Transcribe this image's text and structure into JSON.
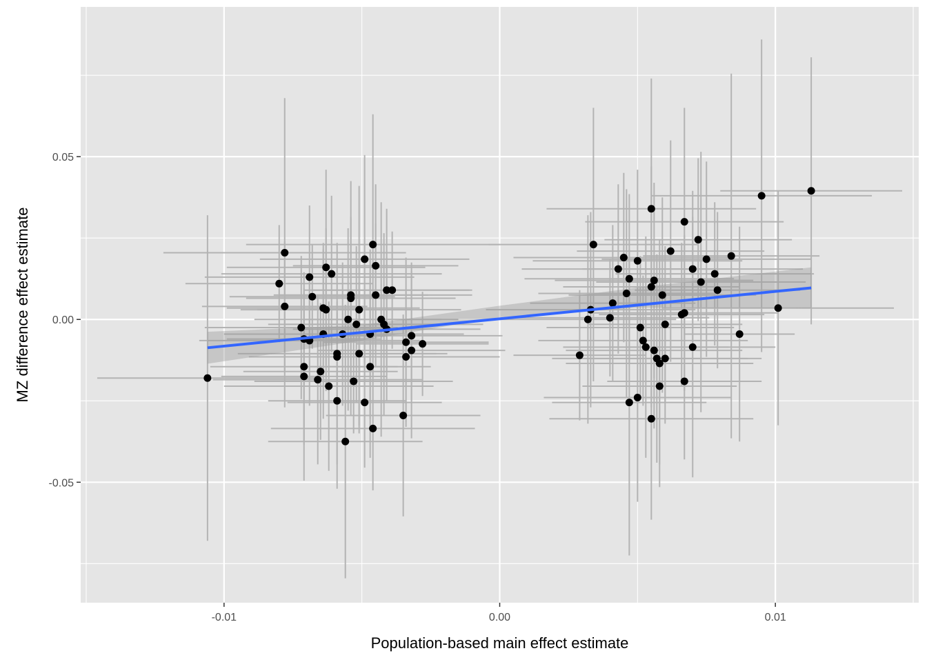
{
  "chart_data": {
    "type": "scatter",
    "title": "",
    "xlabel": "Population-based main effect estimate",
    "ylabel": "MZ difference effect estimate",
    "xlim": [
      -0.0152,
      0.0152
    ],
    "ylim": [
      -0.087,
      0.096
    ],
    "x_ticks": [
      -0.01,
      0.0,
      0.01
    ],
    "x_tick_labels": [
      "-0.01",
      "0.00",
      "0.01"
    ],
    "y_ticks": [
      -0.05,
      0.0,
      0.05
    ],
    "y_tick_labels": [
      "-0.05",
      "0.00",
      "0.05"
    ],
    "grid": true,
    "legend": "none",
    "colors": {
      "panel": "#e5e5e5",
      "grid": "#ffffff",
      "points": "#000000",
      "error_bars": "#b3b3b3",
      "fit_line": "#3366ff",
      "ribbon": "#999999"
    },
    "fit": {
      "x0": -0.0106,
      "y0": -0.0087,
      "x1": 0.0113,
      "y1": 0.0097
    },
    "ribbon": [
      {
        "x": -0.0106,
        "lo": -0.0136,
        "hi": -0.0038
      },
      {
        "x": -0.005,
        "lo": -0.0065,
        "hi": -0.0017
      },
      {
        "x": 0.0,
        "lo": 0.0007,
        "hi": 0.0042
      },
      {
        "x": 0.005,
        "lo": 0.0036,
        "hi": 0.0098
      },
      {
        "x": 0.0113,
        "lo": 0.0035,
        "hi": 0.016
      }
    ],
    "points": [
      {
        "x": -0.0106,
        "y": -0.018,
        "xerr": 0.004,
        "yerr": 0.05
      },
      {
        "x": -0.0078,
        "y": 0.0205,
        "xerr": 0.0044,
        "yerr": 0.0475
      },
      {
        "x": -0.008,
        "y": 0.011,
        "xerr": 0.0034,
        "yerr": 0.018
      },
      {
        "x": -0.0078,
        "y": 0.004,
        "xerr": 0.003,
        "yerr": 0.02
      },
      {
        "x": -0.0069,
        "y": 0.013,
        "xerr": 0.0038,
        "yerr": 0.022
      },
      {
        "x": -0.0063,
        "y": 0.016,
        "xerr": 0.0036,
        "yerr": 0.03
      },
      {
        "x": -0.0061,
        "y": 0.014,
        "xerr": 0.004,
        "yerr": 0.024
      },
      {
        "x": -0.0068,
        "y": 0.007,
        "xerr": 0.003,
        "yerr": 0.016
      },
      {
        "x": -0.0064,
        "y": 0.0035,
        "xerr": 0.0035,
        "yerr": 0.02
      },
      {
        "x": -0.0063,
        "y": 0.003,
        "xerr": 0.0031,
        "yerr": 0.025
      },
      {
        "x": -0.0072,
        "y": -0.0025,
        "xerr": 0.0035,
        "yerr": 0.022
      },
      {
        "x": -0.0069,
        "y": -0.0065,
        "xerr": 0.004,
        "yerr": 0.02
      },
      {
        "x": -0.0071,
        "y": -0.006,
        "xerr": 0.0028,
        "yerr": 0.014
      },
      {
        "x": -0.0064,
        "y": -0.0045,
        "xerr": 0.0036,
        "yerr": 0.026
      },
      {
        "x": -0.0071,
        "y": -0.0145,
        "xerr": 0.0034,
        "yerr": 0.024
      },
      {
        "x": -0.0071,
        "y": -0.0175,
        "xerr": 0.003,
        "yerr": 0.032
      },
      {
        "x": -0.0062,
        "y": -0.0205,
        "xerr": 0.0038,
        "yerr": 0.026
      },
      {
        "x": -0.0065,
        "y": -0.016,
        "xerr": 0.0028,
        "yerr": 0.021
      },
      {
        "x": -0.0066,
        "y": -0.0185,
        "xerr": 0.0038,
        "yerr": 0.026
      },
      {
        "x": -0.0059,
        "y": -0.0115,
        "xerr": 0.0032,
        "yerr": 0.017
      },
      {
        "x": -0.0059,
        "y": -0.0105,
        "xerr": 0.0036,
        "yerr": 0.034
      },
      {
        "x": -0.0059,
        "y": -0.025,
        "xerr": 0.0025,
        "yerr": 0.027
      },
      {
        "x": -0.0057,
        "y": -0.0045,
        "xerr": 0.003,
        "yerr": 0.022
      },
      {
        "x": -0.0055,
        "y": 0.0,
        "xerr": 0.0034,
        "yerr": 0.028
      },
      {
        "x": -0.0053,
        "y": -0.019,
        "xerr": 0.0036,
        "yerr": 0.016
      },
      {
        "x": -0.0054,
        "y": 0.0075,
        "xerr": 0.0028,
        "yerr": 0.024
      },
      {
        "x": -0.0054,
        "y": 0.0065,
        "xerr": 0.0038,
        "yerr": 0.036
      },
      {
        "x": -0.0052,
        "y": -0.0015,
        "xerr": 0.0032,
        "yerr": 0.024
      },
      {
        "x": -0.0051,
        "y": -0.0105,
        "xerr": 0.0032,
        "yerr": 0.022
      },
      {
        "x": -0.0051,
        "y": 0.003,
        "xerr": 0.0037,
        "yerr": 0.038
      },
      {
        "x": -0.0056,
        "y": -0.0375,
        "xerr": 0.0028,
        "yerr": 0.042
      },
      {
        "x": -0.0049,
        "y": 0.0185,
        "xerr": 0.0038,
        "yerr": 0.032
      },
      {
        "x": -0.0049,
        "y": -0.0255,
        "xerr": 0.0028,
        "yerr": 0.02
      },
      {
        "x": -0.0047,
        "y": -0.0145,
        "xerr": 0.0022,
        "yerr": 0.028
      },
      {
        "x": -0.0046,
        "y": 0.023,
        "xerr": 0.0046,
        "yerr": 0.04
      },
      {
        "x": -0.0045,
        "y": 0.0165,
        "xerr": 0.003,
        "yerr": 0.025
      },
      {
        "x": -0.0045,
        "y": 0.0075,
        "xerr": 0.0035,
        "yerr": 0.022
      },
      {
        "x": -0.0046,
        "y": -0.0335,
        "xerr": 0.0037,
        "yerr": 0.019
      },
      {
        "x": -0.0047,
        "y": -0.0045,
        "xerr": 0.0034,
        "yerr": 0.026
      },
      {
        "x": -0.0043,
        "y": 0.0,
        "xerr": 0.0028,
        "yerr": 0.036
      },
      {
        "x": -0.0042,
        "y": -0.0015,
        "xerr": 0.0036,
        "yerr": 0.028
      },
      {
        "x": -0.0041,
        "y": 0.009,
        "xerr": 0.003,
        "yerr": 0.025
      },
      {
        "x": -0.0041,
        "y": -0.003,
        "xerr": 0.0034,
        "yerr": 0.022
      },
      {
        "x": -0.0039,
        "y": 0.009,
        "xerr": 0.0029,
        "yerr": 0.018
      },
      {
        "x": -0.0035,
        "y": -0.0295,
        "xerr": 0.0028,
        "yerr": 0.031
      },
      {
        "x": -0.0034,
        "y": -0.007,
        "xerr": 0.003,
        "yerr": 0.026
      },
      {
        "x": -0.0034,
        "y": -0.0115,
        "xerr": 0.0034,
        "yerr": 0.02
      },
      {
        "x": -0.0032,
        "y": -0.0095,
        "xerr": 0.0034,
        "yerr": 0.027
      },
      {
        "x": -0.0032,
        "y": -0.005,
        "xerr": 0.0033,
        "yerr": 0.02
      },
      {
        "x": -0.0028,
        "y": -0.0075,
        "xerr": 0.0024,
        "yerr": 0.016
      },
      {
        "x": 0.0029,
        "y": -0.011,
        "xerr": 0.0024,
        "yerr": 0.02
      },
      {
        "x": 0.0032,
        "y": 0.0,
        "xerr": 0.0032,
        "yerr": 0.032
      },
      {
        "x": 0.0033,
        "y": 0.003,
        "xerr": 0.0038,
        "yerr": 0.03
      },
      {
        "x": 0.0034,
        "y": 0.023,
        "xerr": 0.0038,
        "yerr": 0.042
      },
      {
        "x": 0.004,
        "y": 0.0005,
        "xerr": 0.0036,
        "yerr": 0.018
      },
      {
        "x": 0.0041,
        "y": 0.005,
        "xerr": 0.003,
        "yerr": 0.024
      },
      {
        "x": 0.0043,
        "y": 0.0155,
        "xerr": 0.0035,
        "yerr": 0.026
      },
      {
        "x": 0.0045,
        "y": 0.019,
        "xerr": 0.004,
        "yerr": 0.026
      },
      {
        "x": 0.0046,
        "y": 0.008,
        "xerr": 0.0032,
        "yerr": 0.032
      },
      {
        "x": 0.0047,
        "y": 0.0125,
        "xerr": 0.0038,
        "yerr": 0.026
      },
      {
        "x": 0.0047,
        "y": -0.0255,
        "xerr": 0.0028,
        "yerr": 0.047
      },
      {
        "x": 0.005,
        "y": 0.018,
        "xerr": 0.0038,
        "yerr": 0.028
      },
      {
        "x": 0.005,
        "y": -0.024,
        "xerr": 0.0034,
        "yerr": 0.032
      },
      {
        "x": 0.0051,
        "y": -0.0025,
        "xerr": 0.0034,
        "yerr": 0.022
      },
      {
        "x": 0.0052,
        "y": -0.0065,
        "xerr": 0.0038,
        "yerr": 0.02
      },
      {
        "x": 0.0053,
        "y": -0.0085,
        "xerr": 0.003,
        "yerr": 0.034
      },
      {
        "x": 0.0055,
        "y": 0.034,
        "xerr": 0.0038,
        "yerr": 0.04
      },
      {
        "x": 0.0055,
        "y": 0.01,
        "xerr": 0.0032,
        "yerr": 0.037
      },
      {
        "x": 0.0056,
        "y": 0.012,
        "xerr": 0.0036,
        "yerr": 0.03
      },
      {
        "x": 0.0056,
        "y": -0.0095,
        "xerr": 0.0032,
        "yerr": 0.024
      },
      {
        "x": 0.0055,
        "y": -0.0305,
        "xerr": 0.0037,
        "yerr": 0.031
      },
      {
        "x": 0.0057,
        "y": -0.012,
        "xerr": 0.0038,
        "yerr": 0.032
      },
      {
        "x": 0.0058,
        "y": -0.0135,
        "xerr": 0.0034,
        "yerr": 0.038
      },
      {
        "x": 0.0058,
        "y": -0.0205,
        "xerr": 0.0028,
        "yerr": 0.024
      },
      {
        "x": 0.0059,
        "y": 0.0075,
        "xerr": 0.0034,
        "yerr": 0.03
      },
      {
        "x": 0.006,
        "y": -0.0015,
        "xerr": 0.0028,
        "yerr": 0.024
      },
      {
        "x": 0.006,
        "y": -0.012,
        "xerr": 0.003,
        "yerr": 0.02
      },
      {
        "x": 0.0062,
        "y": 0.021,
        "xerr": 0.0034,
        "yerr": 0.034
      },
      {
        "x": 0.0066,
        "y": 0.0015,
        "xerr": 0.003,
        "yerr": 0.022
      },
      {
        "x": 0.0067,
        "y": 0.002,
        "xerr": 0.0034,
        "yerr": 0.024
      },
      {
        "x": 0.0067,
        "y": 0.03,
        "xerr": 0.0036,
        "yerr": 0.035
      },
      {
        "x": 0.0067,
        "y": -0.019,
        "xerr": 0.0028,
        "yerr": 0.024
      },
      {
        "x": 0.007,
        "y": 0.0155,
        "xerr": 0.004,
        "yerr": 0.024
      },
      {
        "x": 0.007,
        "y": -0.0085,
        "xerr": 0.003,
        "yerr": 0.04
      },
      {
        "x": 0.0072,
        "y": 0.0245,
        "xerr": 0.0034,
        "yerr": 0.025
      },
      {
        "x": 0.0073,
        "y": 0.0115,
        "xerr": 0.0038,
        "yerr": 0.04
      },
      {
        "x": 0.0075,
        "y": 0.0185,
        "xerr": 0.0038,
        "yerr": 0.03
      },
      {
        "x": 0.0078,
        "y": 0.014,
        "xerr": 0.0036,
        "yerr": 0.022
      },
      {
        "x": 0.0079,
        "y": 0.009,
        "xerr": 0.003,
        "yerr": 0.024
      },
      {
        "x": 0.0084,
        "y": 0.0195,
        "xerr": 0.0032,
        "yerr": 0.056
      },
      {
        "x": 0.0087,
        "y": -0.0045,
        "xerr": 0.002,
        "yerr": 0.033
      },
      {
        "x": 0.0095,
        "y": 0.038,
        "xerr": 0.004,
        "yerr": 0.048
      },
      {
        "x": 0.0101,
        "y": 0.0035,
        "xerr": 0.0042,
        "yerr": 0.036
      },
      {
        "x": 0.0113,
        "y": 0.0395,
        "xerr": 0.0033,
        "yerr": 0.041
      }
    ]
  }
}
